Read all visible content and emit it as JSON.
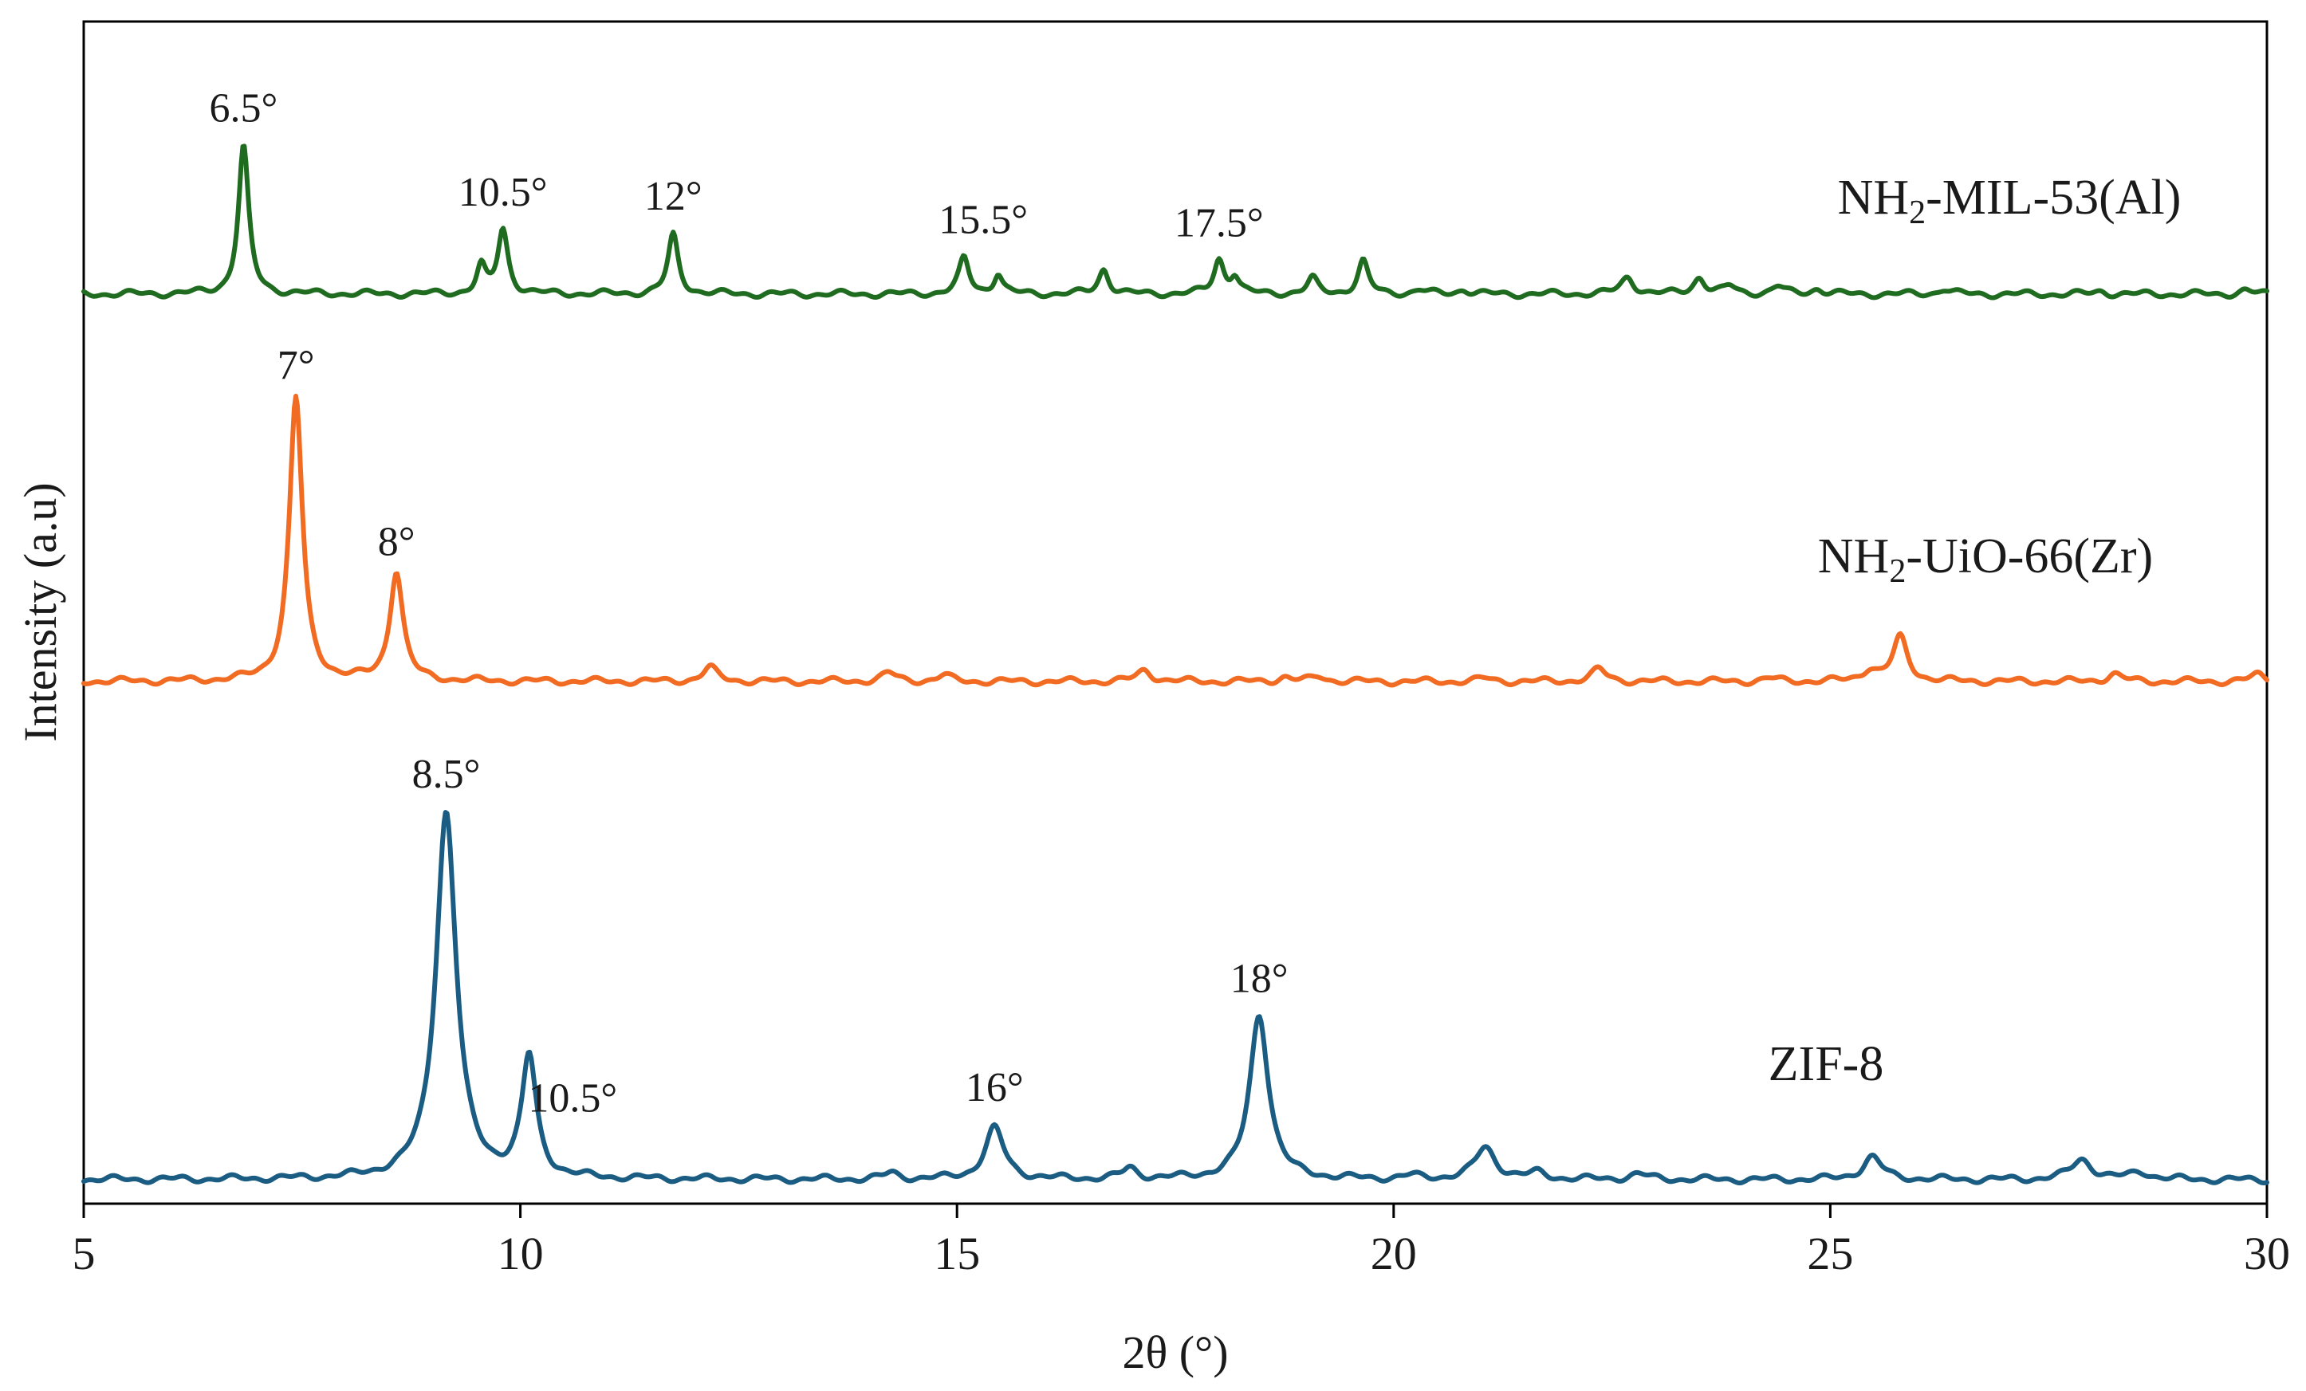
{
  "chart_data": {
    "type": "line",
    "title": "",
    "xlabel": "2θ (°)",
    "ylabel": "Intensity (a.u)",
    "xlim": [
      5,
      30
    ],
    "xticks": [
      5,
      10,
      15,
      20,
      25,
      30
    ],
    "xtick_labels": [
      "5",
      "10",
      "15",
      "20",
      "25",
      "30"
    ],
    "y_units": "arbitrary, stacked patterns",
    "grid": false,
    "legend": "none; series labelled inline at right",
    "series": [
      {
        "name": "NH₂-MIL-53(Al)",
        "name_base": "NH",
        "name_sub": "2",
        "name_rest": "-MIL-53(Al)",
        "color": "#1f6b1f",
        "baseline": 0.0,
        "peaks": [
          {
            "x": 6.83,
            "h": 1.95,
            "w": 0.07
          },
          {
            "x": 9.55,
            "h": 0.35,
            "w": 0.06
          },
          {
            "x": 9.8,
            "h": 0.85,
            "w": 0.07
          },
          {
            "x": 11.75,
            "h": 0.78,
            "w": 0.07
          },
          {
            "x": 15.08,
            "h": 0.47,
            "w": 0.07
          },
          {
            "x": 15.47,
            "h": 0.27,
            "w": 0.06
          },
          {
            "x": 16.68,
            "h": 0.33,
            "w": 0.07
          },
          {
            "x": 18.0,
            "h": 0.45,
            "w": 0.07
          },
          {
            "x": 18.18,
            "h": 0.22,
            "w": 0.06
          },
          {
            "x": 19.07,
            "h": 0.2,
            "w": 0.07
          },
          {
            "x": 19.65,
            "h": 0.43,
            "w": 0.07
          },
          {
            "x": 20.3,
            "h": 0.05,
            "w": 0.08
          },
          {
            "x": 20.8,
            "h": 0.06,
            "w": 0.08
          },
          {
            "x": 22.68,
            "h": 0.22,
            "w": 0.09
          },
          {
            "x": 23.5,
            "h": 0.22,
            "w": 0.08
          },
          {
            "x": 23.85,
            "h": 0.1,
            "w": 0.08
          },
          {
            "x": 24.4,
            "h": 0.1,
            "w": 0.08
          },
          {
            "x": 24.85,
            "h": 0.07,
            "w": 0.08
          },
          {
            "x": 26.3,
            "h": 0.07,
            "w": 0.08
          },
          {
            "x": 28.1,
            "h": 0.04,
            "w": 0.08
          },
          {
            "x": 29.75,
            "h": 0.05,
            "w": 0.08
          }
        ]
      },
      {
        "name": "NH₂-UiO-66(Zr)",
        "name_base": "NH",
        "name_sub": "2",
        "name_rest": "-UiO-66(Zr)",
        "color": "#f26b22",
        "baseline": 0.0,
        "peaks": [
          {
            "x": 7.43,
            "h": 3.75,
            "w": 0.09
          },
          {
            "x": 8.58,
            "h": 1.45,
            "w": 0.09
          },
          {
            "x": 12.17,
            "h": 0.18,
            "w": 0.1
          },
          {
            "x": 14.22,
            "h": 0.11,
            "w": 0.1
          },
          {
            "x": 14.85,
            "h": 0.08,
            "w": 0.09
          },
          {
            "x": 17.15,
            "h": 0.15,
            "w": 0.1
          },
          {
            "x": 18.75,
            "h": 0.06,
            "w": 0.09
          },
          {
            "x": 19.15,
            "h": 0.07,
            "w": 0.09
          },
          {
            "x": 21.05,
            "h": 0.04,
            "w": 0.1
          },
          {
            "x": 22.35,
            "h": 0.16,
            "w": 0.1
          },
          {
            "x": 24.3,
            "h": 0.04,
            "w": 0.1
          },
          {
            "x": 25.45,
            "h": 0.15,
            "w": 0.1
          },
          {
            "x": 25.8,
            "h": 0.58,
            "w": 0.1
          },
          {
            "x": 28.25,
            "h": 0.1,
            "w": 0.1
          },
          {
            "x": 29.9,
            "h": 0.09,
            "w": 0.1
          }
        ]
      },
      {
        "name": "ZIF-8",
        "name_base": "ZIF-8",
        "name_sub": "",
        "name_rest": "",
        "color": "#1a5c82",
        "baseline": 0.0,
        "peaks": [
          {
            "x": 9.15,
            "h": 4.85,
            "w": 0.14
          },
          {
            "x": 10.1,
            "h": 1.58,
            "w": 0.1
          },
          {
            "x": 14.25,
            "h": 0.08,
            "w": 0.1
          },
          {
            "x": 15.43,
            "h": 0.68,
            "w": 0.13
          },
          {
            "x": 16.98,
            "h": 0.14,
            "w": 0.1
          },
          {
            "x": 18.46,
            "h": 2.18,
            "w": 0.13
          },
          {
            "x": 20.2,
            "h": 0.04,
            "w": 0.12
          },
          {
            "x": 21.05,
            "h": 0.42,
            "w": 0.14
          },
          {
            "x": 21.65,
            "h": 0.08,
            "w": 0.12
          },
          {
            "x": 22.8,
            "h": 0.07,
            "w": 0.13
          },
          {
            "x": 25.48,
            "h": 0.3,
            "w": 0.13
          },
          {
            "x": 27.88,
            "h": 0.27,
            "w": 0.14
          },
          {
            "x": 28.55,
            "h": 0.1,
            "w": 0.14
          }
        ]
      }
    ],
    "annotations": [
      {
        "series": 0,
        "text": "6.5°",
        "x": 6.83
      },
      {
        "series": 0,
        "text": "10.5°",
        "x": 9.8
      },
      {
        "series": 0,
        "text": "12°",
        "x": 11.75
      },
      {
        "series": 0,
        "text": "15.5°",
        "x": 15.3
      },
      {
        "series": 0,
        "text": "17.5°",
        "x": 18.0
      },
      {
        "series": 1,
        "text": "7°",
        "x": 7.43
      },
      {
        "series": 1,
        "text": "8°",
        "x": 8.58
      },
      {
        "series": 2,
        "text": "8.5°",
        "x": 9.15
      },
      {
        "series": 2,
        "text": "10.5°",
        "x": 10.6
      },
      {
        "series": 2,
        "text": "16°",
        "x": 15.43
      },
      {
        "series": 2,
        "text": "18°",
        "x": 18.46
      }
    ]
  }
}
